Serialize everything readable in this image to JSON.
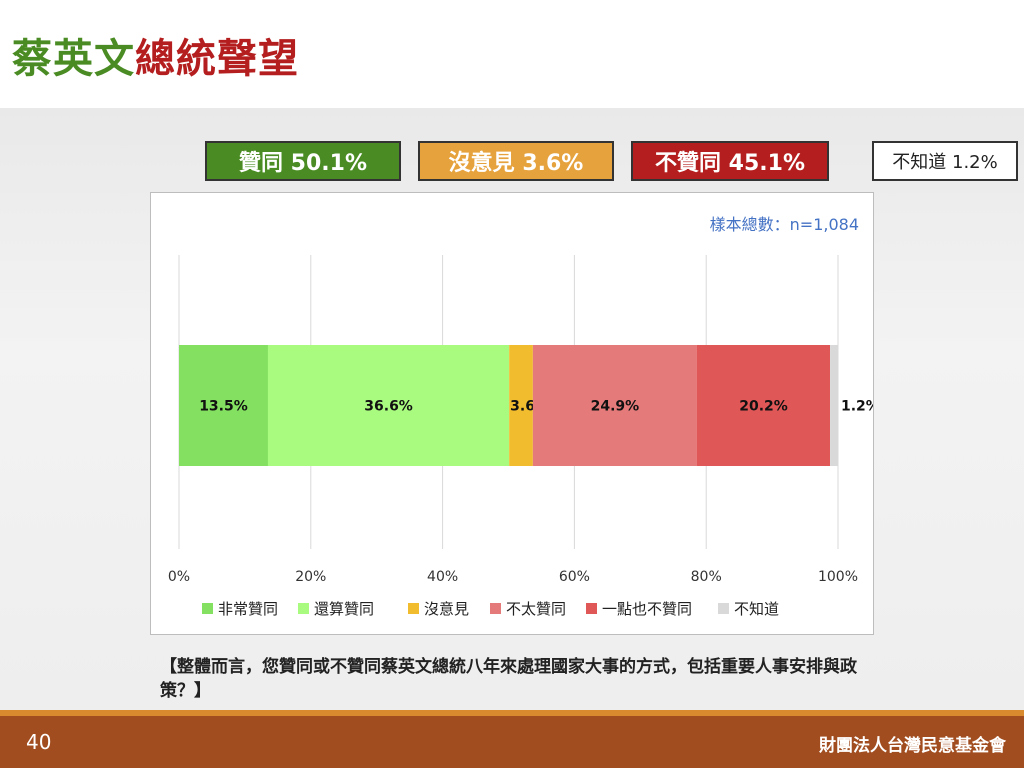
{
  "title": {
    "part1": "蔡英文",
    "part2": "總統聲望"
  },
  "summary": [
    {
      "text": "贊同 50.1%",
      "color": "#4a8c23",
      "text_color": "#ffffff"
    },
    {
      "text": "沒意見 3.6%",
      "color": "#e6a23c",
      "text_color": "#ffffff"
    },
    {
      "text": "不贊同 45.1%",
      "color": "#b41e1e",
      "text_color": "#ffffff"
    },
    {
      "text": "不知道 1.2%",
      "color": "#ffffff",
      "text_color": "#222222"
    }
  ],
  "sample_note": "樣本總數：n=1,084",
  "chart_data": {
    "type": "bar",
    "orientation": "horizontal",
    "stacked": true,
    "xlim": [
      0,
      100
    ],
    "x_tick_labels": [
      "0%",
      "20%",
      "40%",
      "60%",
      "80%",
      "100%"
    ],
    "grid": true,
    "legend_position": "bottom",
    "series": [
      {
        "name": "非常贊同",
        "value": 13.5,
        "label": "13.5%",
        "color": "#83e060"
      },
      {
        "name": "還算贊同",
        "value": 36.6,
        "label": "36.6%",
        "color": "#a9fb80"
      },
      {
        "name": "沒意見",
        "value": 3.6,
        "label": "3.6%",
        "color": "#f1bd2f"
      },
      {
        "name": "不太贊同",
        "value": 24.9,
        "label": "24.9%",
        "color": "#e57a7a"
      },
      {
        "name": "一點也不贊同",
        "value": 20.2,
        "label": "20.2%",
        "color": "#e05757"
      },
      {
        "name": "不知道",
        "value": 1.2,
        "label": "1.2%",
        "color": "#d9d9d9"
      }
    ]
  },
  "question": "【整體而言，您贊同或不贊同蔡英文總統八年來處理國家大事的方式，包括重要人事安排與政策？】",
  "footer": {
    "page_number": "40",
    "org": "財團法人台灣民意基金會"
  }
}
